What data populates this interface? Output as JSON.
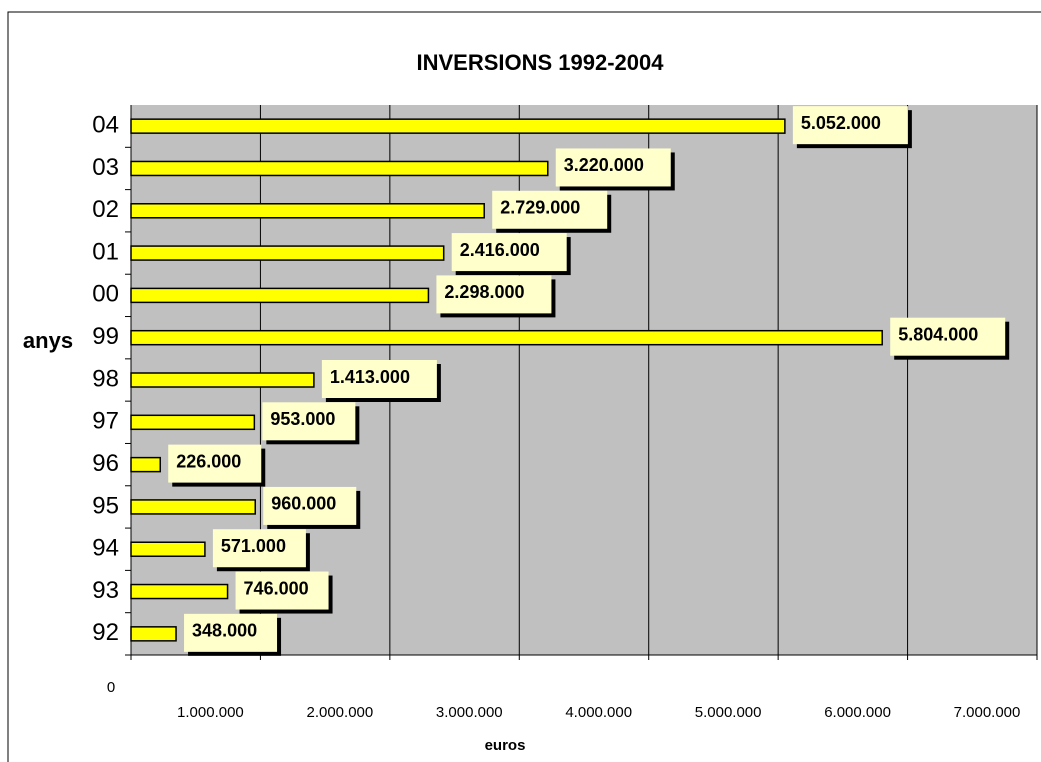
{
  "chart_data": {
    "type": "bar",
    "orientation": "horizontal",
    "title": "INVERSIONS 1992-2004",
    "x_label": "euros",
    "y_label": "anys",
    "categories": [
      "92",
      "93",
      "94",
      "95",
      "96",
      "97",
      "98",
      "99",
      "00",
      "01",
      "02",
      "03",
      "04"
    ],
    "values": [
      348000,
      746000,
      571000,
      960000,
      226000,
      953000,
      1413000,
      5804000,
      2298000,
      2416000,
      2729000,
      3220000,
      5052000
    ],
    "value_labels": [
      "348.000",
      "746.000",
      "571.000",
      "960.000",
      "226.000",
      "953.000",
      "1.413.000",
      "5.804.000",
      "2.298.000",
      "2.416.000",
      "2.729.000",
      "3.220.000",
      "5.052.000"
    ],
    "color": "#ffff00",
    "xlim": [
      0,
      7000000
    ],
    "xticks": [
      0,
      {
        "value": 1000000,
        "label": "1.000.000"
      },
      {
        "value": 2000000,
        "label": "2.000.000"
      },
      {
        "value": 3000000,
        "label": "3.000.000"
      },
      {
        "value": 4000000,
        "label": "4.000.000"
      },
      {
        "value": 5000000,
        "label": "5.000.000"
      },
      {
        "value": 6000000,
        "label": "6.000.000"
      },
      {
        "value": 7000000,
        "label": "7.000.000"
      }
    ],
    "grid": true
  }
}
